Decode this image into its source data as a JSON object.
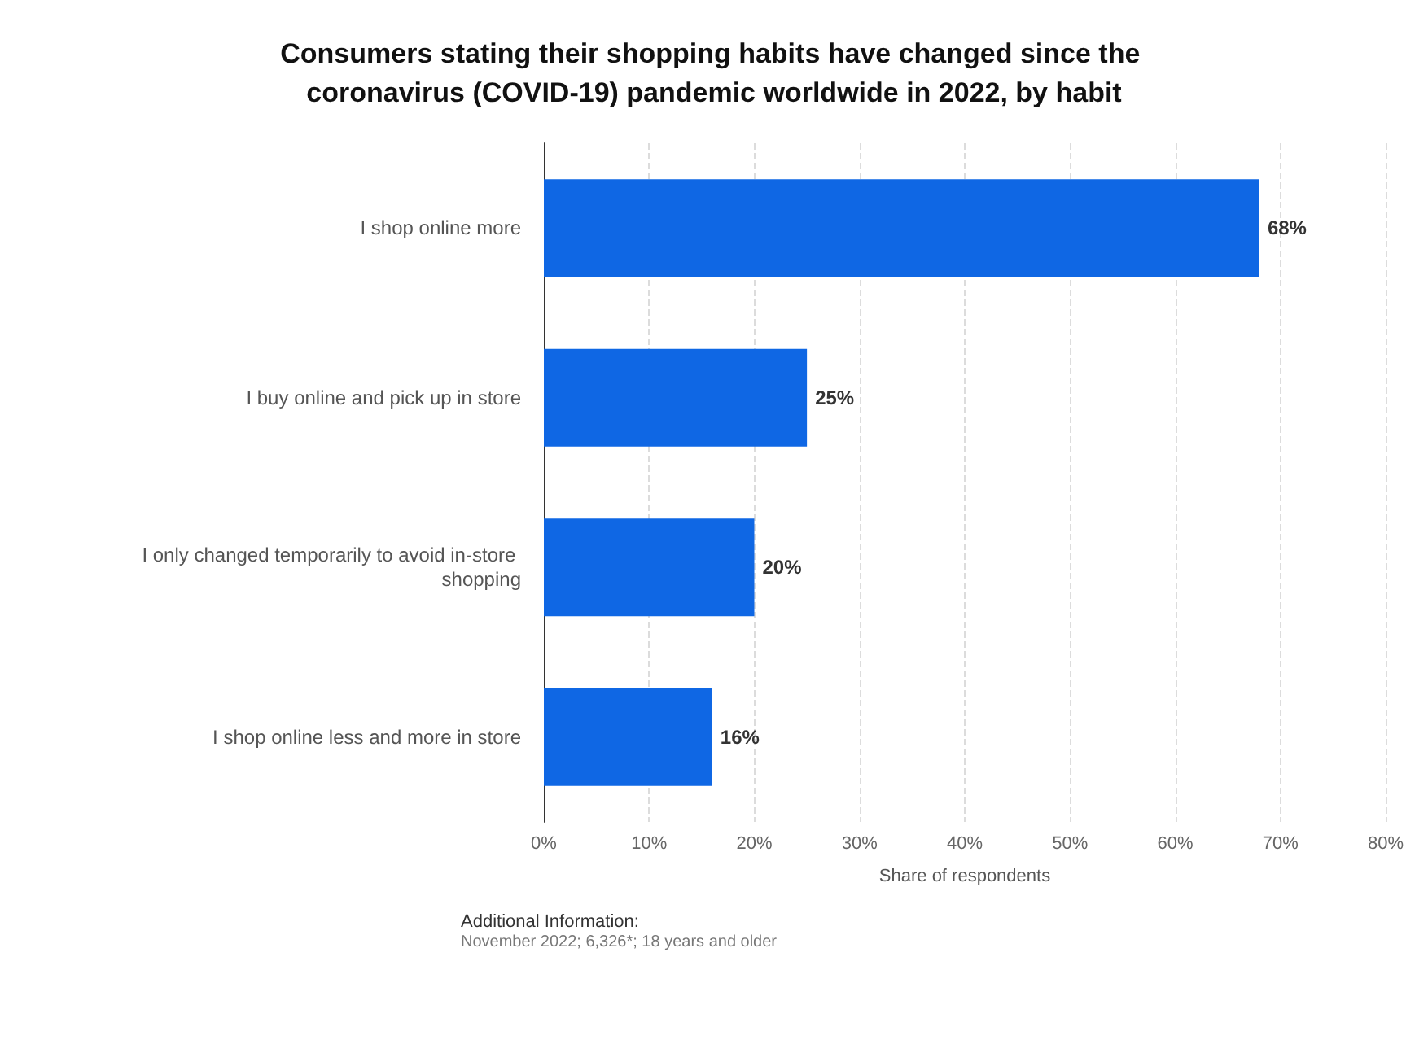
{
  "chart_data": {
    "type": "bar",
    "orientation": "horizontal",
    "title": "Consumers stating their shopping habits have changed since the coronavirus (COVID-19) pandemic worldwide in 2022, by habit",
    "categories": [
      "I shop online more",
      "I buy online and pick up in store",
      "I only changed temporarily to avoid in-store shopping",
      "I shop online less and more in store"
    ],
    "values": [
      68,
      25,
      20,
      16
    ],
    "value_labels": [
      "68%",
      "25%",
      "20%",
      "16%"
    ],
    "color": "#0f67e4",
    "xlabel": "Share of respondents",
    "xlim": [
      0,
      80
    ],
    "xticks": [
      {
        "value": 0,
        "label": "0%"
      },
      {
        "value": 10,
        "label": "10%"
      },
      {
        "value": 20,
        "label": "20%"
      },
      {
        "value": 30,
        "label": "30%"
      },
      {
        "value": 40,
        "label": "40%"
      },
      {
        "value": 50,
        "label": "50%"
      },
      {
        "value": 60,
        "label": "60%"
      },
      {
        "value": 70,
        "label": "70%"
      },
      {
        "value": 80,
        "label": "80%"
      }
    ],
    "grid": "x",
    "annotations": [
      "Additional Information:",
      "November 2022; 6,326*; 18 years and older"
    ]
  }
}
